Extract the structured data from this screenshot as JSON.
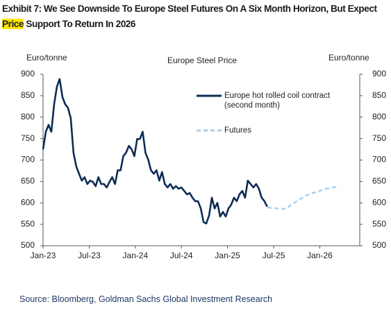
{
  "chart_data": {
    "type": "line",
    "title": [
      "Exhibit 7: We See Downside To Europe Steel Futures On A Six Month Horizon, But Expect ",
      "Price",
      " Support To Return In 2026"
    ],
    "subtitle": "Europe Steel Price",
    "y_label": "Euro/tonne",
    "y2_label": "Euro/tonne",
    "source": "Source: Bloomberg, Goldman Sachs Global Investment Research",
    "xlim": [
      0,
      41.2
    ],
    "xticks": [
      {
        "value": 0,
        "label": "Jan-23"
      },
      {
        "value": 6,
        "label": "Jul-23"
      },
      {
        "value": 12,
        "label": "Jan-24"
      },
      {
        "value": 18,
        "label": "Jul-24"
      },
      {
        "value": 24,
        "label": "Jan-25"
      },
      {
        "value": 30,
        "label": "Jul-25"
      },
      {
        "value": 36,
        "label": "Jan-26"
      }
    ],
    "ylim": [
      500,
      900
    ],
    "yticks": [
      500,
      550,
      600,
      650,
      700,
      750,
      800,
      850,
      900
    ],
    "y2lim": [
      500,
      900
    ],
    "y2ticks": [
      500,
      550,
      600,
      650,
      700,
      750,
      800,
      850,
      900
    ],
    "legend": "upper right",
    "series": [
      {
        "name": "Europe hot rolled coil contract (second month)",
        "color": "#0d2c54",
        "dashed": false,
        "x": [
          0,
          0.36,
          0.72,
          1.08,
          1.44,
          1.8,
          2.16,
          2.52,
          2.88,
          3.24,
          3.6,
          3.96,
          4.32,
          4.68,
          5.04,
          5.4,
          5.76,
          6.12,
          6.48,
          6.84,
          7.2,
          7.56,
          7.92,
          8.28,
          8.64,
          9,
          9.36,
          9.72,
          10.08,
          10.44,
          10.8,
          11.16,
          11.52,
          11.88,
          12.24,
          12.6,
          12.96,
          13.32,
          13.68,
          14.04,
          14.4,
          14.76,
          15.12,
          15.48,
          15.84,
          16.2,
          16.56,
          16.92,
          17.28,
          17.64,
          18,
          18.36,
          18.72,
          19.08,
          19.44,
          19.8,
          20.16,
          20.52,
          20.88,
          21.24,
          21.6,
          21.96,
          22.32,
          22.68,
          23.04,
          23.4,
          23.76,
          24.12,
          24.48,
          24.84,
          25.2,
          25.56,
          25.92,
          26.28,
          26.64,
          27,
          27.36,
          27.72,
          28.08,
          28.44,
          28.8,
          29.16
        ],
        "values": [
          725,
          766,
          782,
          766,
          830,
          871,
          889,
          847,
          830,
          822,
          798,
          717,
          685,
          668,
          652,
          660,
          644,
          652,
          649,
          639,
          660,
          644,
          644,
          636,
          649,
          660,
          644,
          676,
          676,
          709,
          717,
          733,
          725,
          709,
          749,
          749,
          766,
          717,
          701,
          676,
          668,
          676,
          652,
          672,
          644,
          636,
          644,
          633,
          639,
          633,
          636,
          628,
          620,
          623,
          612,
          604,
          604,
          587,
          555,
          552,
          571,
          612,
          587,
          600,
          568,
          579,
          568,
          587,
          596,
          612,
          604,
          620,
          628,
          612,
          652,
          644,
          636,
          644,
          633,
          612,
          604,
          591
        ]
      },
      {
        "name": "Futures",
        "color": "#a9cfee",
        "dashed": true,
        "x": [
          29.2,
          30.56,
          31.46,
          32.37,
          33.27,
          34.18,
          35.08,
          36,
          36.89,
          38.5
        ],
        "values": [
          589,
          587,
          586,
          596,
          607,
          617,
          623,
          628,
          633,
          639
        ]
      }
    ]
  }
}
